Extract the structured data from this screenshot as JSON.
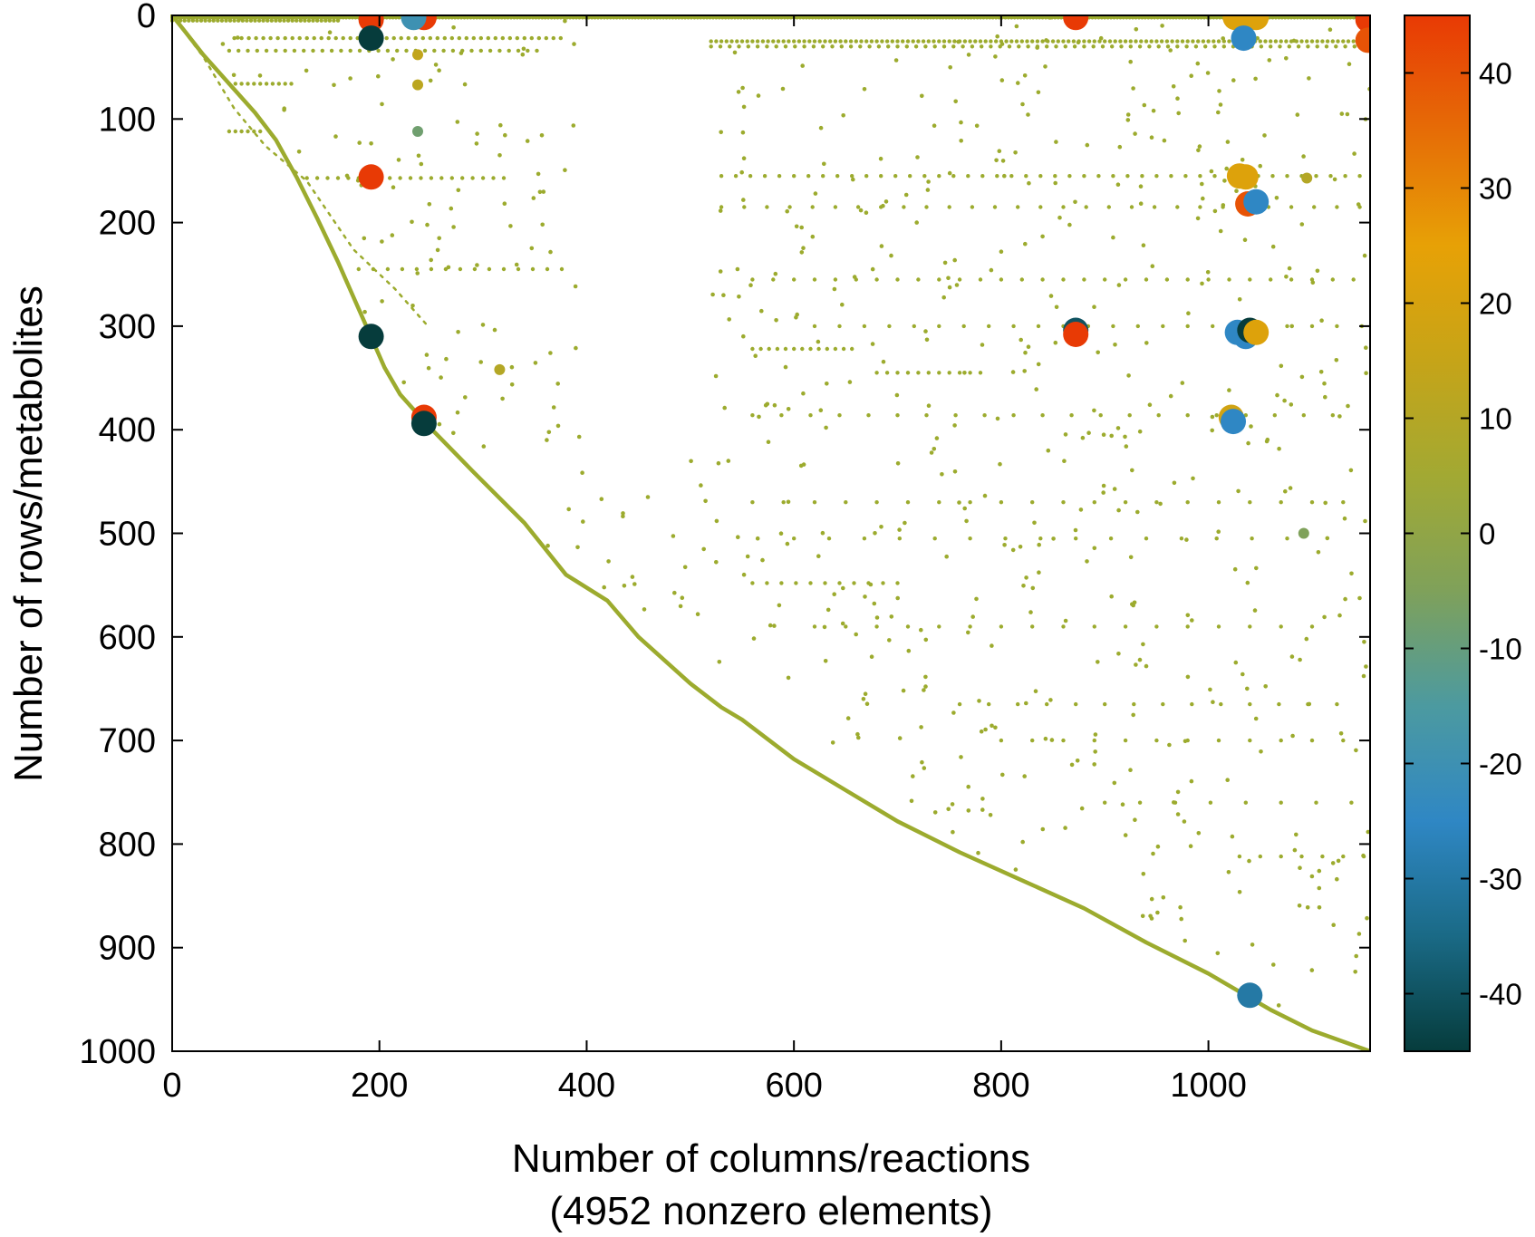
{
  "chart_data": {
    "type": "scatter",
    "title": "",
    "xlabel": "Number of columns/reactions",
    "xlabel_line2": "(4952 nonzero elements)",
    "ylabel": "Number of rows/metabolites",
    "xlim": [
      0,
      1156
    ],
    "ylim": [
      1000,
      0
    ],
    "x_ticks": [
      0,
      200,
      400,
      600,
      800,
      1000
    ],
    "y_ticks": [
      0,
      100,
      200,
      300,
      400,
      500,
      600,
      700,
      800,
      900,
      1000
    ],
    "colorbar": {
      "range": [
        -45,
        45
      ],
      "ticks": [
        40,
        30,
        20,
        10,
        0,
        -10,
        -20,
        -30,
        -40
      ],
      "colors": [
        "#063c3c",
        "#1a6a86",
        "#2f87c4",
        "#4c9aa0",
        "#7fa15a",
        "#a2a933",
        "#c6a418",
        "#e7a106",
        "#e66c06",
        "#e83a05"
      ]
    },
    "marker_color_default": "#9cab2e",
    "diagonal_path": [
      [
        0,
        0
      ],
      [
        12,
        15
      ],
      [
        30,
        38
      ],
      [
        55,
        66
      ],
      [
        80,
        94
      ],
      [
        100,
        120
      ],
      [
        120,
        156
      ],
      [
        140,
        196
      ],
      [
        160,
        238
      ],
      [
        175,
        272
      ],
      [
        190,
        306
      ],
      [
        205,
        340
      ],
      [
        220,
        366
      ],
      [
        245,
        394
      ],
      [
        290,
        440
      ],
      [
        340,
        490
      ],
      [
        380,
        540
      ],
      [
        420,
        565
      ],
      [
        450,
        600
      ],
      [
        500,
        645
      ],
      [
        530,
        668
      ],
      [
        550,
        680
      ],
      [
        600,
        718
      ],
      [
        650,
        748
      ],
      [
        700,
        778
      ],
      [
        760,
        808
      ],
      [
        820,
        835
      ],
      [
        880,
        862
      ],
      [
        940,
        895
      ],
      [
        1000,
        925
      ],
      [
        1060,
        960
      ],
      [
        1100,
        980
      ],
      [
        1156,
        1000
      ]
    ],
    "upper_diagonal_path": [
      [
        0,
        0
      ],
      [
        30,
        40
      ],
      [
        60,
        90
      ],
      [
        90,
        126
      ],
      [
        130,
        160
      ],
      [
        175,
        226
      ],
      [
        215,
        264
      ],
      [
        245,
        298
      ]
    ],
    "row_bands": [
      {
        "y": 2,
        "x0": 0,
        "x1": 1156,
        "step": 3
      },
      {
        "y": 5,
        "x0": 0,
        "x1": 160,
        "step": 4
      },
      {
        "y": 22,
        "x0": 60,
        "x1": 380,
        "step": 7
      },
      {
        "y": 25,
        "x0": 520,
        "x1": 1156,
        "step": 5
      },
      {
        "y": 34,
        "x0": 55,
        "x1": 360,
        "step": 9
      },
      {
        "y": 30,
        "x0": 520,
        "x1": 1156,
        "step": 9
      },
      {
        "y": 66,
        "x0": 55,
        "x1": 120,
        "step": 6
      },
      {
        "y": 112,
        "x0": 55,
        "x1": 90,
        "step": 6
      },
      {
        "y": 157,
        "x0": 130,
        "x1": 320,
        "step": 10
      },
      {
        "y": 155,
        "x0": 530,
        "x1": 1150,
        "step": 14
      },
      {
        "y": 185,
        "x0": 530,
        "x1": 1150,
        "step": 22
      },
      {
        "y": 245,
        "x0": 180,
        "x1": 380,
        "step": 14
      },
      {
        "y": 255,
        "x0": 560,
        "x1": 1150,
        "step": 20
      },
      {
        "y": 300,
        "x0": 620,
        "x1": 1150,
        "step": 24
      },
      {
        "y": 322,
        "x0": 560,
        "x1": 660,
        "step": 8
      },
      {
        "y": 345,
        "x0": 680,
        "x1": 780,
        "step": 10
      },
      {
        "y": 386,
        "x0": 560,
        "x1": 1140,
        "step": 28
      },
      {
        "y": 470,
        "x0": 560,
        "x1": 1150,
        "step": 30
      },
      {
        "y": 505,
        "x0": 600,
        "x1": 1100,
        "step": 34
      },
      {
        "y": 548,
        "x0": 560,
        "x1": 700,
        "step": 14
      },
      {
        "y": 590,
        "x0": 620,
        "x1": 1100,
        "step": 30
      },
      {
        "y": 665,
        "x0": 760,
        "x1": 1150,
        "step": 28
      },
      {
        "y": 700,
        "x0": 800,
        "x1": 1150,
        "step": 30
      },
      {
        "y": 760,
        "x0": 900,
        "x1": 1150,
        "step": 34
      },
      {
        "y": 812,
        "x0": 1030,
        "x1": 1150,
        "step": 20
      }
    ],
    "scatter_count": 640,
    "scatter_seed": 17,
    "small_points": [
      {
        "x": 237,
        "y": 67,
        "v": 12
      },
      {
        "x": 237,
        "y": 112,
        "v": -8
      },
      {
        "x": 316,
        "y": 342,
        "v": 10
      },
      {
        "x": 1095,
        "y": 157,
        "v": 10
      },
      {
        "x": 1092,
        "y": 500,
        "v": -5
      },
      {
        "x": 237,
        "y": 38,
        "v": 14
      }
    ],
    "large_points": [
      {
        "x": 192,
        "y": 4,
        "v": 45
      },
      {
        "x": 243,
        "y": 2,
        "v": 45
      },
      {
        "x": 233,
        "y": 2,
        "v": -20
      },
      {
        "x": 192,
        "y": 22,
        "v": -45
      },
      {
        "x": 192,
        "y": 156,
        "v": 45
      },
      {
        "x": 192,
        "y": 310,
        "v": -45
      },
      {
        "x": 243,
        "y": 388,
        "v": 45
      },
      {
        "x": 243,
        "y": 394,
        "v": -45
      },
      {
        "x": 872,
        "y": 2,
        "v": 45
      },
      {
        "x": 872,
        "y": 304,
        "v": -40
      },
      {
        "x": 872,
        "y": 308,
        "v": 45
      },
      {
        "x": 1026,
        "y": 2,
        "v": 22
      },
      {
        "x": 1036,
        "y": 2,
        "v": 22
      },
      {
        "x": 1046,
        "y": 2,
        "v": 22
      },
      {
        "x": 1034,
        "y": 22,
        "v": -25
      },
      {
        "x": 1030,
        "y": 155,
        "v": 22
      },
      {
        "x": 1036,
        "y": 156,
        "v": 22
      },
      {
        "x": 1038,
        "y": 182,
        "v": 40
      },
      {
        "x": 1046,
        "y": 180,
        "v": -25
      },
      {
        "x": 1028,
        "y": 306,
        "v": -25
      },
      {
        "x": 1036,
        "y": 310,
        "v": -25
      },
      {
        "x": 1040,
        "y": 304,
        "v": -45
      },
      {
        "x": 1046,
        "y": 306,
        "v": 22
      },
      {
        "x": 1022,
        "y": 388,
        "v": 18
      },
      {
        "x": 1024,
        "y": 392,
        "v": -25
      },
      {
        "x": 1040,
        "y": 946,
        "v": -30
      },
      {
        "x": 1154,
        "y": 2,
        "v": -45
      },
      {
        "x": 1154,
        "y": 4,
        "v": 45
      },
      {
        "x": 1154,
        "y": 24,
        "v": 40
      }
    ]
  }
}
